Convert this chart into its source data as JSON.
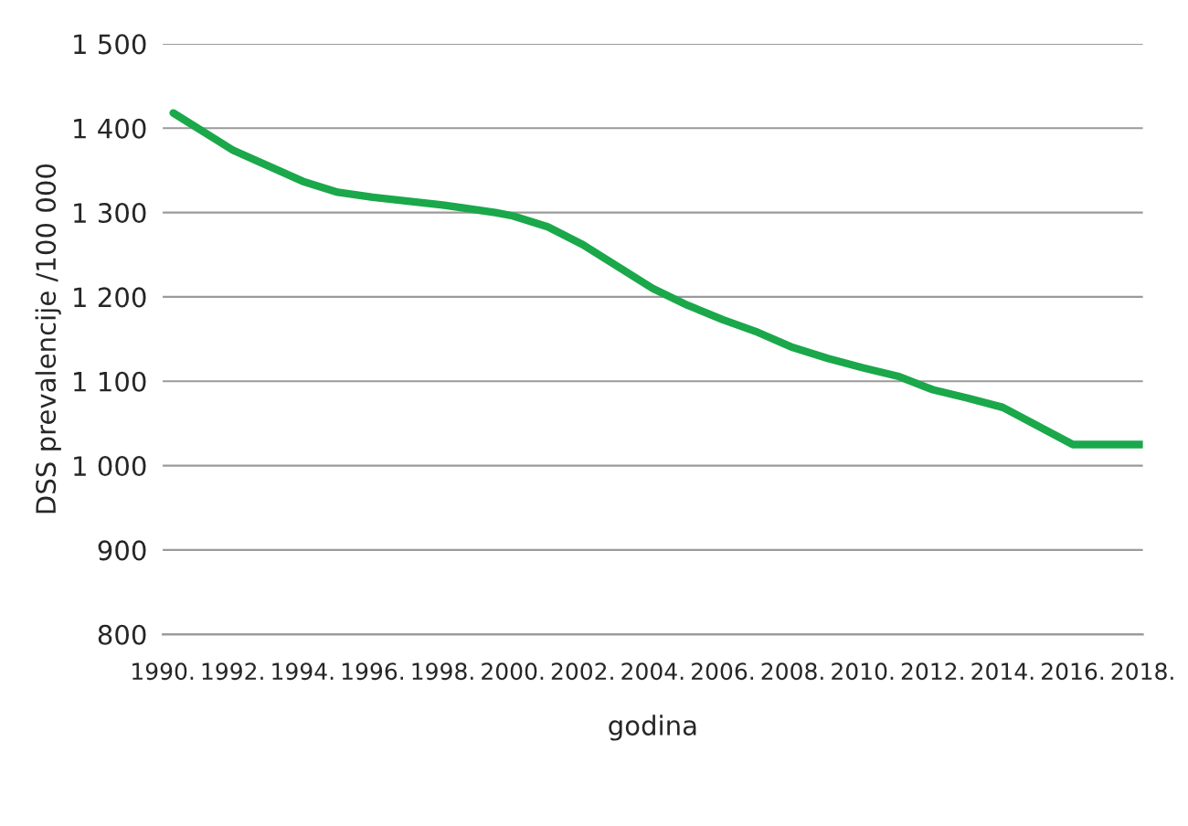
{
  "chart_data": {
    "type": "line",
    "xlabel": "godina",
    "ylabel": "DSS prevalencije /100 000",
    "x": [
      1990.3,
      1991.5,
      1992,
      1994,
      1995,
      1996,
      1998,
      1999.5,
      2000,
      2001,
      2002,
      2003,
      2004,
      2005,
      2006,
      2007,
      2008,
      2009,
      2010,
      2011,
      2012,
      2013,
      2014,
      2016,
      2018
    ],
    "series": [
      {
        "color": "#1aa84a",
        "values": [
          1418,
          1387,
          1374,
          1337,
          1324,
          1318,
          1309,
          1300,
          1296,
          1283,
          1262,
          1236,
          1210,
          1190,
          1173,
          1158,
          1140,
          1127,
          1116,
          1106,
          1090,
          1080,
          1069,
          1025,
          1025
        ]
      }
    ],
    "xlim": [
      1990,
      2018
    ],
    "xticks": [
      {
        "value": 1990,
        "label": "1990."
      },
      {
        "value": 1992,
        "label": "1992."
      },
      {
        "value": 1994,
        "label": "1994."
      },
      {
        "value": 1996,
        "label": "1996."
      },
      {
        "value": 1998,
        "label": "1998."
      },
      {
        "value": 2000,
        "label": "2000."
      },
      {
        "value": 2002,
        "label": "2002."
      },
      {
        "value": 2004,
        "label": "2004."
      },
      {
        "value": 2006,
        "label": "2006."
      },
      {
        "value": 2008,
        "label": "2008."
      },
      {
        "value": 2010,
        "label": "2010."
      },
      {
        "value": 2012,
        "label": "2012."
      },
      {
        "value": 2014,
        "label": "2014."
      },
      {
        "value": 2016,
        "label": "2016."
      },
      {
        "value": 2018,
        "label": "2018."
      }
    ],
    "ylim": [
      800,
      1500
    ],
    "yticks": [
      {
        "value": 800,
        "label": "800"
      },
      {
        "value": 900,
        "label": "900"
      },
      {
        "value": 1000,
        "label": "1 000"
      },
      {
        "value": 1100,
        "label": "1 100"
      },
      {
        "value": 1200,
        "label": "1 200"
      },
      {
        "value": 1300,
        "label": "1 300"
      },
      {
        "value": 1400,
        "label": "1 400"
      },
      {
        "value": 1500,
        "label": "1 500"
      }
    ],
    "grid": "y",
    "line_style": "solid",
    "marker": "none"
  }
}
